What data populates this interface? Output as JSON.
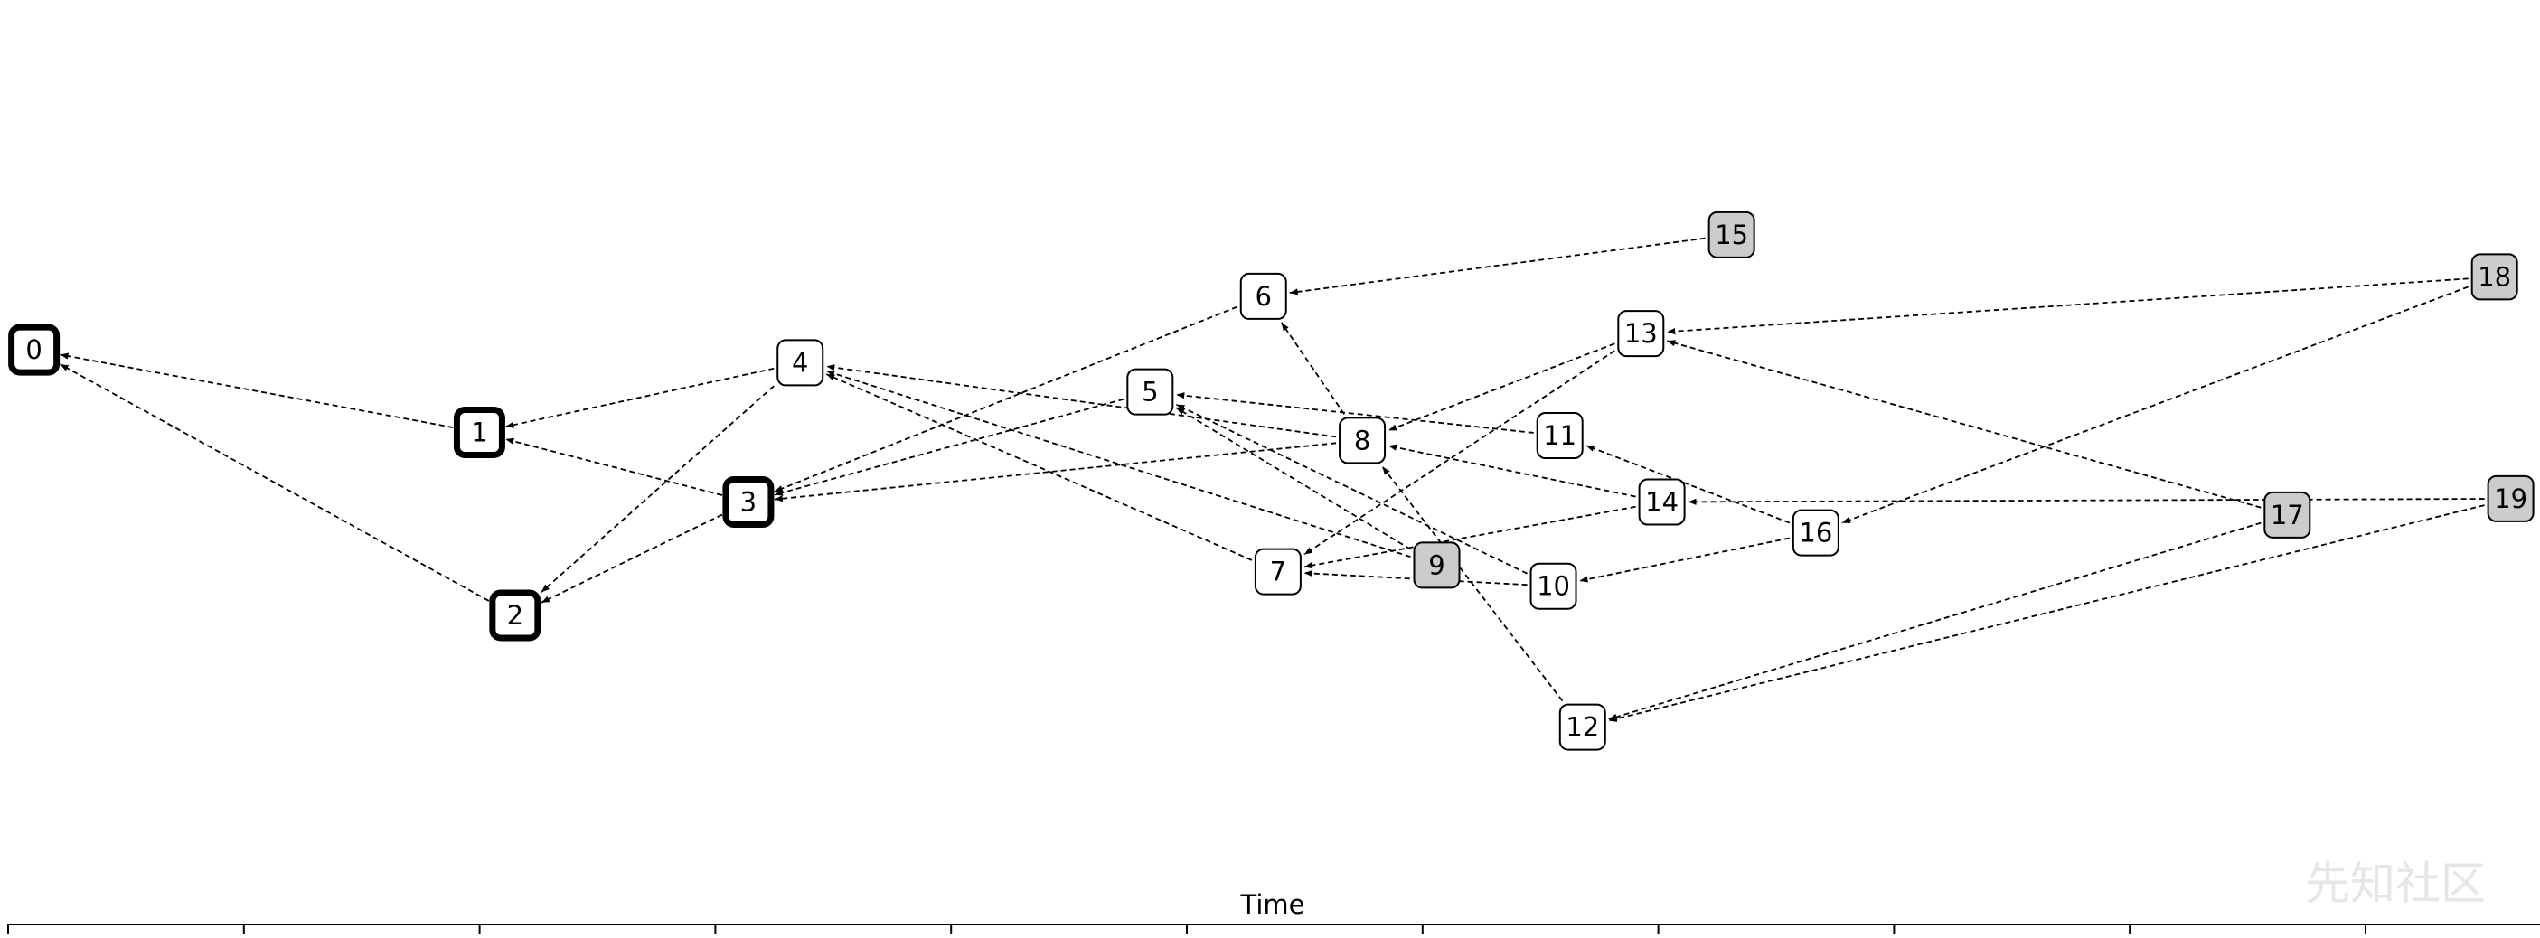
{
  "axis_label": "Time",
  "watermark": "先知社区",
  "nodes": [
    {
      "label": "0",
      "style": "bold"
    },
    {
      "label": "1",
      "style": "bold"
    },
    {
      "label": "2",
      "style": "bold"
    },
    {
      "label": "3",
      "style": "bold"
    },
    {
      "label": "4",
      "style": "plain"
    },
    {
      "label": "5",
      "style": "plain"
    },
    {
      "label": "6",
      "style": "plain"
    },
    {
      "label": "7",
      "style": "plain"
    },
    {
      "label": "8",
      "style": "plain"
    },
    {
      "label": "9",
      "style": "gray"
    },
    {
      "label": "10",
      "style": "plain"
    },
    {
      "label": "11",
      "style": "plain"
    },
    {
      "label": "12",
      "style": "plain"
    },
    {
      "label": "13",
      "style": "plain"
    },
    {
      "label": "14",
      "style": "plain"
    },
    {
      "label": "15",
      "style": "gray"
    },
    {
      "label": "16",
      "style": "plain"
    },
    {
      "label": "17",
      "style": "gray"
    },
    {
      "label": "18",
      "style": "gray"
    },
    {
      "label": "19",
      "style": "gray"
    }
  ],
  "edges": [
    [
      1,
      0
    ],
    [
      2,
      0
    ],
    [
      3,
      1
    ],
    [
      4,
      1
    ],
    [
      3,
      2
    ],
    [
      4,
      2
    ],
    [
      5,
      3
    ],
    [
      6,
      3
    ],
    [
      8,
      3
    ],
    [
      7,
      4
    ],
    [
      9,
      4
    ],
    [
      8,
      4
    ],
    [
      11,
      5
    ],
    [
      9,
      5
    ],
    [
      10,
      5
    ],
    [
      15,
      6
    ],
    [
      8,
      6
    ],
    [
      13,
      7
    ],
    [
      14,
      7
    ],
    [
      10,
      7
    ],
    [
      13,
      8
    ],
    [
      14,
      8
    ],
    [
      12,
      8
    ],
    [
      18,
      13
    ],
    [
      17,
      13
    ],
    [
      18,
      16
    ],
    [
      17,
      12
    ],
    [
      19,
      12
    ],
    [
      19,
      14
    ],
    [
      16,
      11
    ],
    [
      16,
      10
    ]
  ]
}
